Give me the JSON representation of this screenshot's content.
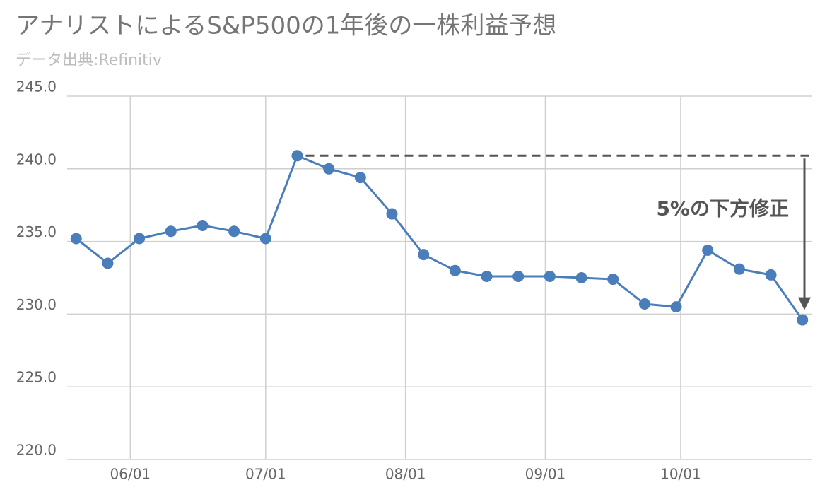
{
  "chart_data": {
    "type": "line",
    "title": "アナリストによるS&P500の1年後の一株利益予想",
    "subtitle": "データ出典:Refinitiv",
    "annotation": "5%の下方修正",
    "x": [
      "05/20",
      "05/27",
      "06/03",
      "06/10",
      "06/17",
      "06/24",
      "07/01",
      "07/08",
      "07/15",
      "07/22",
      "07/29",
      "08/05",
      "08/12",
      "08/19",
      "08/26",
      "09/02",
      "09/09",
      "09/16",
      "09/23",
      "09/30",
      "10/07",
      "10/14",
      "10/21",
      "10/28"
    ],
    "series": [
      {
        "color": "#4a7ebb",
        "values": [
          235.2,
          233.5,
          235.2,
          235.7,
          236.1,
          235.7,
          235.2,
          240.9,
          240.0,
          239.4,
          236.9,
          234.1,
          233.0,
          232.6,
          232.6,
          232.6,
          232.5,
          232.4,
          230.7,
          230.5,
          234.4,
          233.1,
          232.7,
          229.6
        ]
      }
    ],
    "xlim": [
      "05/18",
      "10/30"
    ],
    "xticks": [
      "06/01",
      "07/01",
      "08/01",
      "09/01",
      "10/01"
    ],
    "ylim": [
      220,
      245
    ],
    "yticks": [
      {
        "value": 220,
        "label": "220.0"
      },
      {
        "value": 225,
        "label": "225.0"
      },
      {
        "value": 230,
        "label": "230.0"
      },
      {
        "value": 235,
        "label": "235.0"
      },
      {
        "value": 240,
        "label": "240.0"
      },
      {
        "value": 245,
        "label": "245.0"
      }
    ],
    "grid": true
  }
}
